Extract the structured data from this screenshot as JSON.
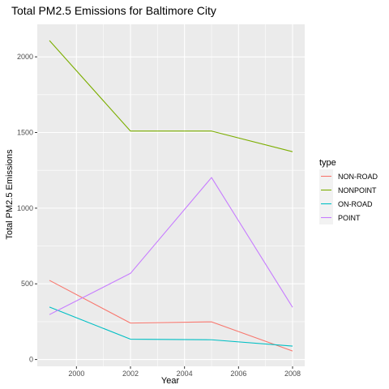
{
  "chart_data": {
    "type": "line",
    "title": "Total PM2.5 Emissions for Baltimore City",
    "xlabel": "Year",
    "ylabel": "Total PM2.5 Emissions",
    "x": [
      1999,
      2002,
      2005,
      2008
    ],
    "xlim": [
      1998.55,
      2008.45
    ],
    "ylim": [
      -45,
      2215
    ],
    "x_ticks": [
      2000,
      2002,
      2004,
      2006,
      2008
    ],
    "y_ticks": [
      0,
      500,
      1000,
      1500,
      2000
    ],
    "grid": true,
    "legend": {
      "title": "type",
      "placement": "right"
    },
    "series": [
      {
        "name": "NON-ROAD",
        "color": "#F8766D",
        "values": [
          522.94,
          240.85,
          248.93,
          55.82
        ]
      },
      {
        "name": "NONPOINT",
        "color": "#7CAE00",
        "values": [
          2107.63,
          1509.5,
          1509.5,
          1373.21
        ]
      },
      {
        "name": "ON-ROAD",
        "color": "#00BFC4",
        "values": [
          346.82,
          134.31,
          130.43,
          88.28
        ]
      },
      {
        "name": "POINT",
        "color": "#C77CFF",
        "values": [
          296.8,
          569.26,
          1202.49,
          344.98
        ]
      }
    ]
  }
}
